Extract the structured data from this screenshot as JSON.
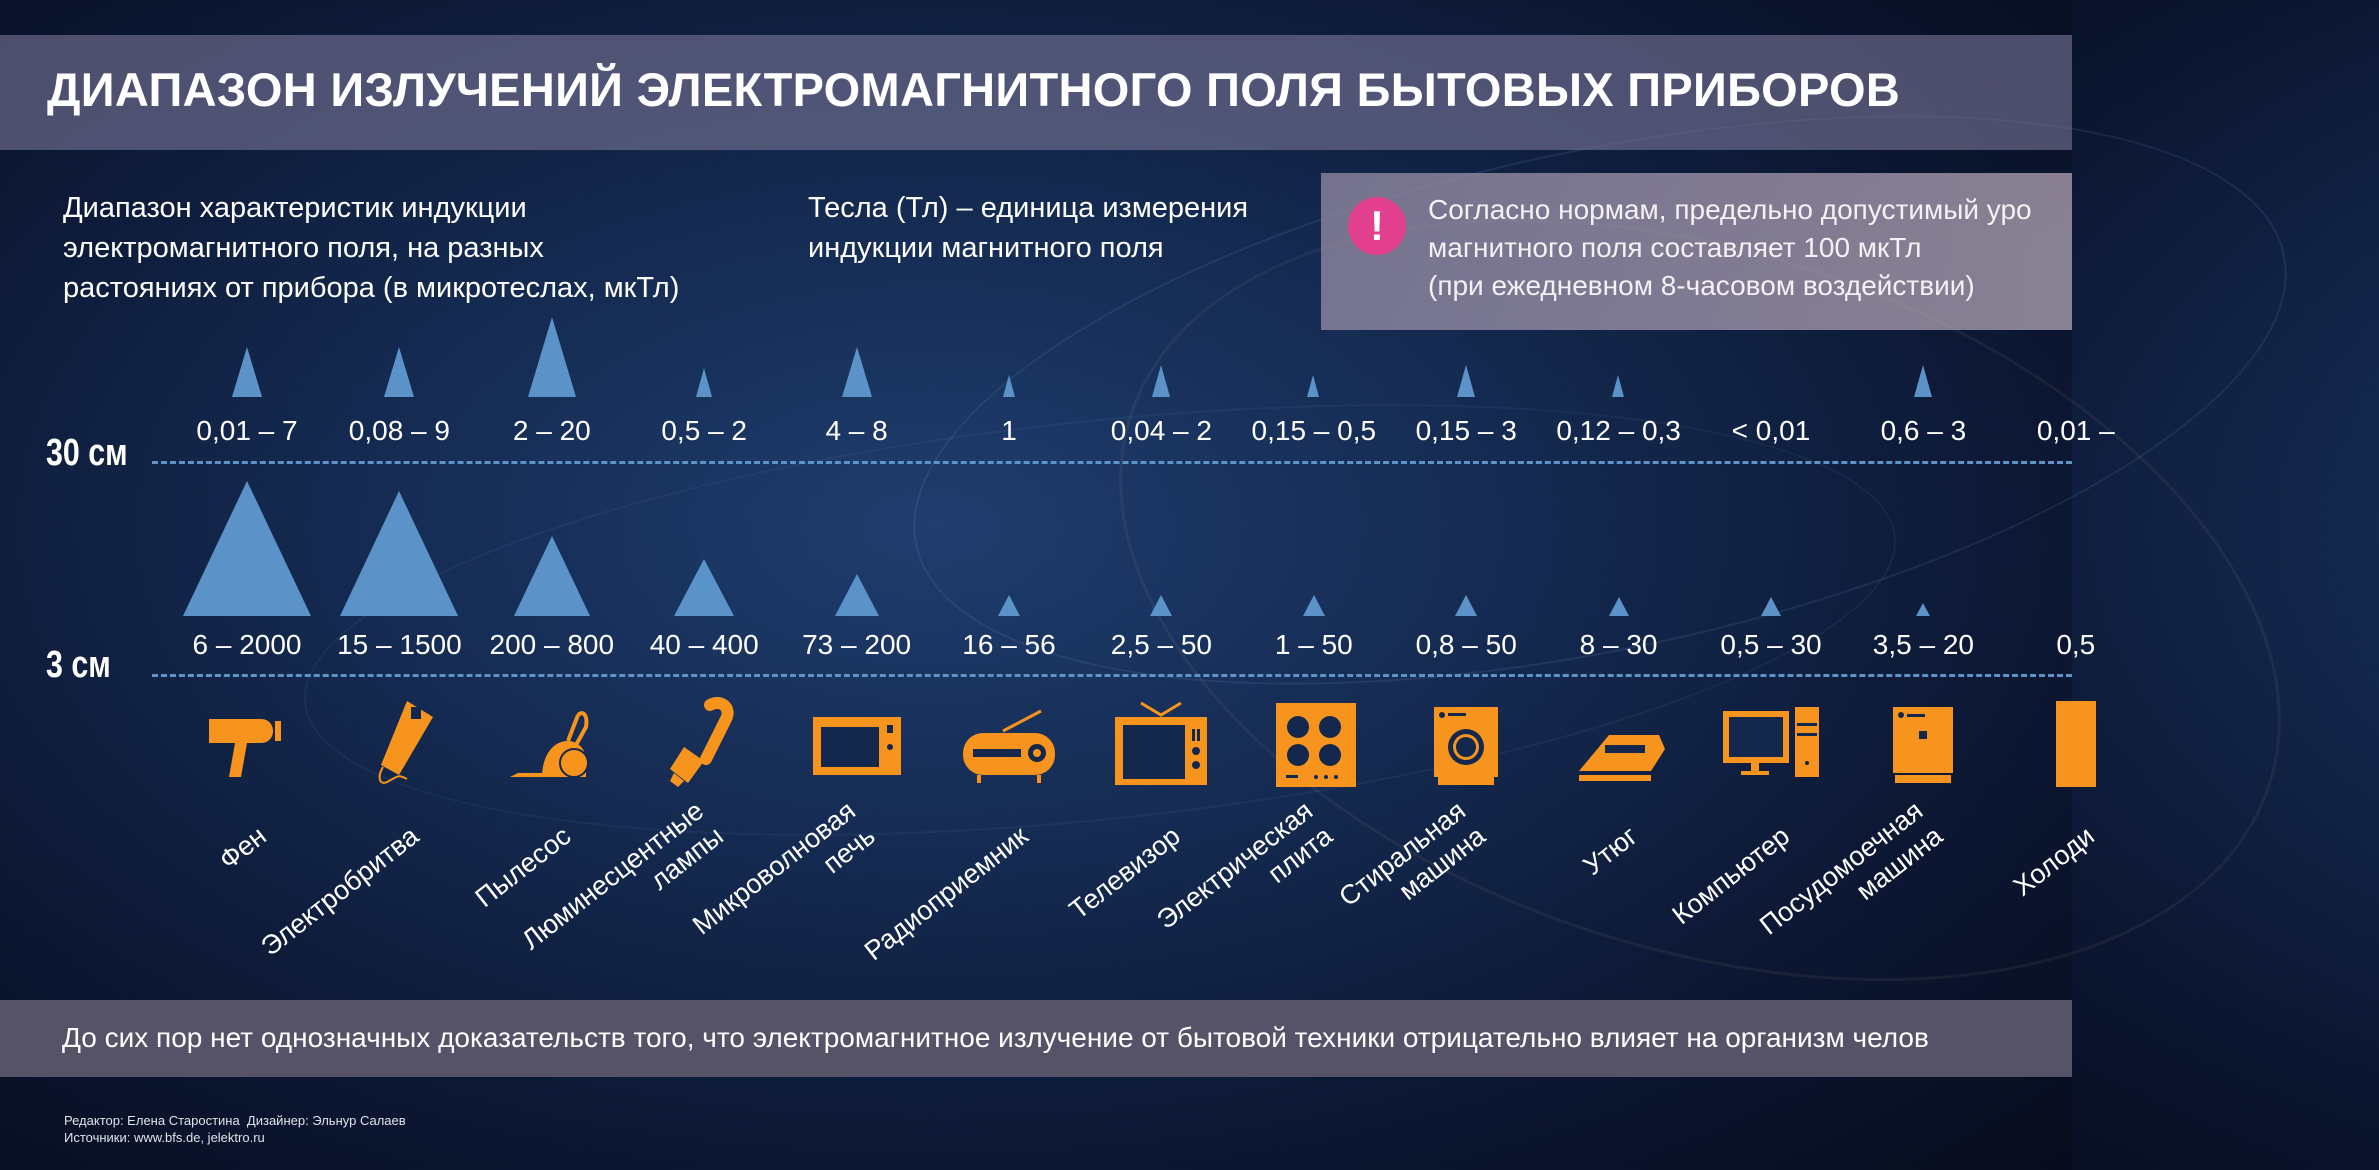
{
  "title": "ДИАПАЗОН ИЗЛУЧЕНИЙ ЭЛЕКТРОМАГНИТНОГО ПОЛЯ БЫТОВЫХ ПРИБОРОВ",
  "subtitle_left": "Диапазон характеристик индукции\nэлектромагнитного поля, на разных\nрастояниях от прибора (в микротеслах, мкТл)",
  "subtitle_mid": "Тесла (Тл) – единица измерения\nиндукции магнитного поля",
  "alert": {
    "icon": "exclamation-icon",
    "symbol": "!",
    "text": "Согласно нормам, предельно допустимый уро\nмагнитного поля составляет 100 мкТл\n(при ежедневном 8-часовом воздействии)"
  },
  "rows": {
    "far": "30 см",
    "near": "3 см"
  },
  "colors": {
    "accent_triangle": "#5b92c8",
    "icon": "#f7941d",
    "alert": "#e2408f"
  },
  "chart_data": {
    "type": "table",
    "unit": "мкТл",
    "devices": [
      {
        "name": "Фен",
        "icon": "hair-dryer-icon",
        "at_30cm": "0,01 – 7",
        "at_3cm": "6 – 2000",
        "max_30": 7,
        "max_3": 2000
      },
      {
        "name": "Электробритва",
        "icon": "electric-shaver-icon",
        "at_30cm": "0,08 – 9",
        "at_3cm": "15 – 1500",
        "max_30": 9,
        "max_3": 1500
      },
      {
        "name": "Пылесос",
        "icon": "vacuum-cleaner-icon",
        "at_30cm": "2 – 20",
        "at_3cm": "200 – 800",
        "max_30": 20,
        "max_3": 800
      },
      {
        "name": "Люминесцентные\nлампы",
        "icon": "fluorescent-lamp-icon",
        "at_30cm": "0,5 – 2",
        "at_3cm": "40 – 400",
        "max_30": 2,
        "max_3": 400
      },
      {
        "name": "Микроволновая\nпечь",
        "icon": "microwave-icon",
        "at_30cm": "4 – 8",
        "at_3cm": "73 – 200",
        "max_30": 8,
        "max_3": 200
      },
      {
        "name": "Радиоприемник",
        "icon": "radio-icon",
        "at_30cm": "1",
        "at_3cm": "16 – 56",
        "max_30": 1,
        "max_3": 56
      },
      {
        "name": "Телевизор",
        "icon": "tv-icon",
        "at_30cm": "0,04 – 2",
        "at_3cm": "2,5 – 50",
        "max_30": 2,
        "max_3": 50
      },
      {
        "name": "Электрическая\nплита",
        "icon": "electric-stove-icon",
        "at_30cm": "0,15 – 0,5",
        "at_3cm": "1 – 50",
        "max_30": 0.5,
        "max_3": 50
      },
      {
        "name": "Стиральная\nмашина",
        "icon": "washing-machine-icon",
        "at_30cm": "0,15 – 3",
        "at_3cm": "0,8 – 50",
        "max_30": 3,
        "max_3": 50
      },
      {
        "name": "Утюг",
        "icon": "iron-icon",
        "at_30cm": "0,12 – 0,3",
        "at_3cm": "8 – 30",
        "max_30": 0.3,
        "max_3": 30
      },
      {
        "name": "Компьютер",
        "icon": "computer-icon",
        "at_30cm": "< 0,01",
        "at_3cm": "0,5 – 30",
        "max_30": 0.01,
        "max_3": 30
      },
      {
        "name": "Посудомоечная\nмашина",
        "icon": "dishwasher-icon",
        "at_30cm": "0,6 – 3",
        "at_3cm": "3,5 – 20",
        "max_30": 3,
        "max_3": 20
      },
      {
        "name": "Холоди",
        "icon": "fridge-icon",
        "at_30cm": "0,01 –",
        "at_3cm": "0,5",
        "max_30": null,
        "max_3": null
      }
    ]
  },
  "bottom_note": "До сих пор нет однозначных доказательств того, что электромагнитное излучение от бытовой техники отрицательно влияет на организм челов",
  "credits": "Редактор: Елена Старостина  Дизайнер: Эльнур Салаев\nИсточники: www.bfs.de, jelektro.ru"
}
